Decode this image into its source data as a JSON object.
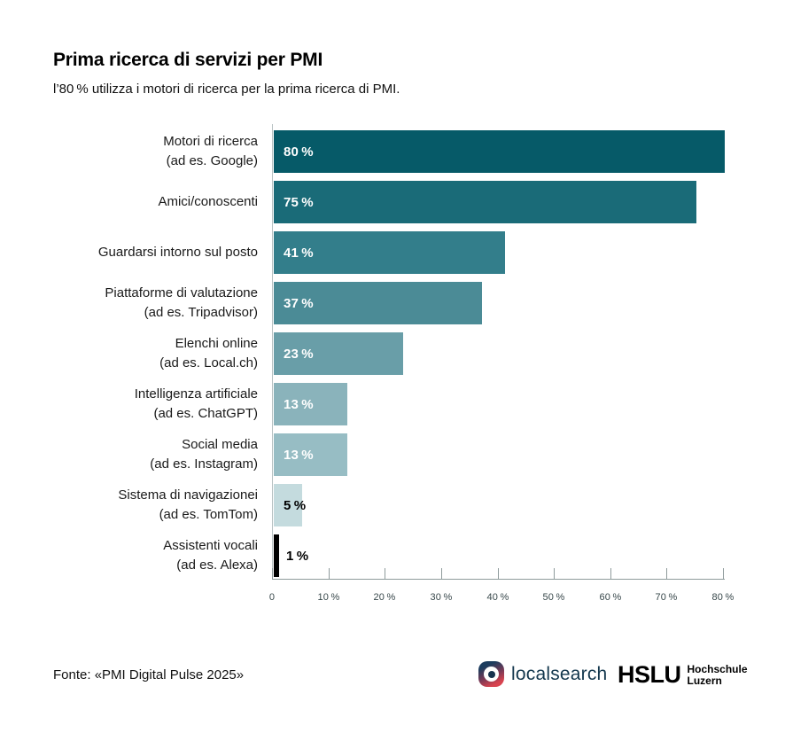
{
  "header": {
    "title": "Prima ricerca di servizi per PMI",
    "subtitle": "l’80 % utilizza i motori di ricerca per la prima ricerca di PMI."
  },
  "chart_data": {
    "type": "bar",
    "orientation": "horizontal",
    "title": "Prima ricerca di servizi per PMI",
    "xlabel": "",
    "ylabel": "",
    "xlim": [
      0,
      80
    ],
    "grid": false,
    "legend": false,
    "x_ticks": [
      "0",
      "10 %",
      "20 %",
      "30 %",
      "40 %",
      "50 %",
      "60 %",
      "70 %",
      "80 %"
    ],
    "categories": [
      "Motori di ricerca (ad es. Google)",
      "Amici/conoscenti",
      "Guardarsi intorno sul posto",
      "Piattaforme di valutazione (ad es. Tripadvisor)",
      "Elenchi online (ad es. Local.ch)",
      "Intelligenza artificiale (ad es. ChatGPT)",
      "Social media (ad es. Instagram)",
      "Sistema di navigazionei (ad es. TomTom)",
      "Assistenti vocali (ad es. Alexa)"
    ],
    "values": [
      80,
      75,
      41,
      37,
      23,
      13,
      13,
      5,
      1
    ],
    "bars": [
      {
        "label_lines": [
          "Motori di ricerca",
          "(ad es. Google)"
        ],
        "value": 80,
        "value_label": "80 %",
        "color": "#065a68",
        "value_color": "#ffffff",
        "value_inside": true
      },
      {
        "label_lines": [
          "Amici/conoscenti"
        ],
        "value": 75,
        "value_label": "75 %",
        "color": "#1a6b78",
        "value_color": "#ffffff",
        "value_inside": true
      },
      {
        "label_lines": [
          "Guardarsi intorno sul posto"
        ],
        "value": 41,
        "value_label": "41 %",
        "color": "#337e8b",
        "value_color": "#ffffff",
        "value_inside": true
      },
      {
        "label_lines": [
          "Piattaforme di valutazione",
          "(ad es. Tripadvisor)"
        ],
        "value": 37,
        "value_label": "37 %",
        "color": "#4b8b96",
        "value_color": "#ffffff",
        "value_inside": true
      },
      {
        "label_lines": [
          "Elenchi online",
          "(ad es. Local.ch)"
        ],
        "value": 23,
        "value_label": "23 %",
        "color": "#699ea8",
        "value_color": "#ffffff",
        "value_inside": true
      },
      {
        "label_lines": [
          "Intelligenza artificiale",
          "(ad es. ChatGPT)"
        ],
        "value": 13,
        "value_label": "13 %",
        "color": "#8ab3bb",
        "value_color": "#ffffff",
        "value_inside": true
      },
      {
        "label_lines": [
          "Social media",
          "(ad es. Instagram)"
        ],
        "value": 13,
        "value_label": "13 %",
        "color": "#97bdc4",
        "value_color": "#ffffff",
        "value_inside": true
      },
      {
        "label_lines": [
          "Sistema di navigazionei",
          "(ad es. TomTom)"
        ],
        "value": 5,
        "value_label": "5 %",
        "color": "#c4dbde",
        "value_color": "#000000",
        "value_inside": true
      },
      {
        "label_lines": [
          "Assistenti vocali",
          "(ad es. Alexa)"
        ],
        "value": 1,
        "value_label": "1 %",
        "color": "#000000",
        "value_color": "#000000",
        "value_inside": false
      }
    ]
  },
  "footer": {
    "source": "Fonte: «PMI Digital Pulse 2025»",
    "logos": {
      "localsearch": {
        "wordmark": "localsearch",
        "wordmark_color": "#14384e",
        "icon": "localsearch-target-icon"
      },
      "hslu": {
        "mark": "HSLU",
        "line1": "Hochschule",
        "line2": "Luzern",
        "color": "#000000"
      }
    }
  },
  "colors": {
    "background": "#ffffff",
    "axis": "#8f9b9c",
    "baseline": "#b9c2c3",
    "tick_label": "#37474a",
    "text": "#1a1a1a"
  }
}
